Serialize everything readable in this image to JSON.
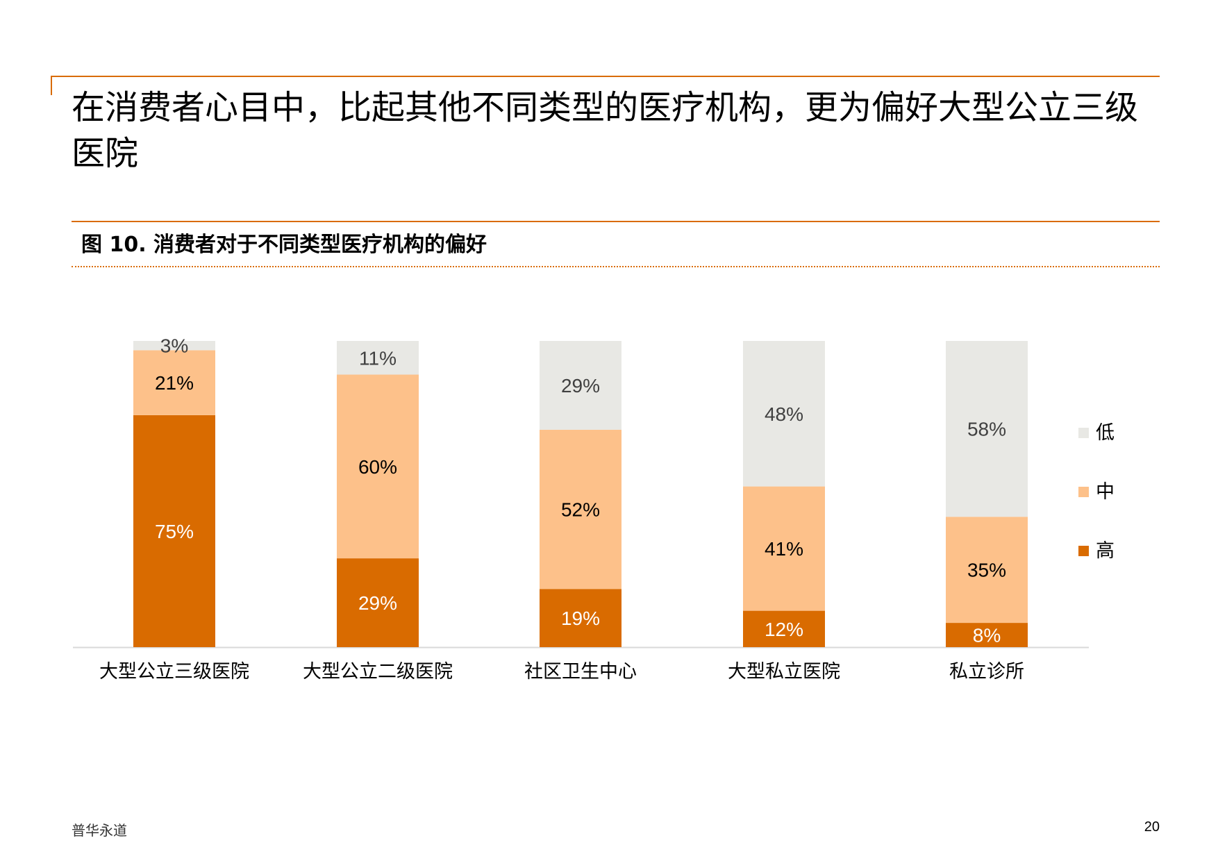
{
  "page": {
    "title": "在消费者心目中，比起其他不同类型的医疗机构，更为偏好大型公立三级医院",
    "figure_title": "图 10. 消费者对于不同类型医疗机构的偏好",
    "footer_brand": "普华永道",
    "page_number": "20"
  },
  "colors": {
    "high": "#d96b00",
    "medium": "#fdc18a",
    "low": "#e8e8e4",
    "accent_rule": "#d96b00"
  },
  "chart_data": {
    "type": "bar",
    "stacked": true,
    "percent": true,
    "title": "图 10. 消费者对于不同类型医疗机构的偏好",
    "xlabel": "",
    "ylabel": "",
    "ylim": [
      0,
      100
    ],
    "grid": false,
    "legend_position": "right",
    "categories": [
      "大型公立三级医院",
      "大型公立二级医院",
      "社区卫生中心",
      "大型私立医院",
      "私立诊所"
    ],
    "series": [
      {
        "name": "高",
        "values": [
          75,
          29,
          19,
          12,
          8
        ],
        "labels": [
          "75%",
          "29%",
          "19%",
          "12%",
          "8%"
        ]
      },
      {
        "name": "中",
        "values": [
          21,
          60,
          52,
          41,
          35
        ],
        "labels": [
          "21%",
          "60%",
          "52%",
          "41%",
          "35%"
        ]
      },
      {
        "name": "低",
        "values": [
          3,
          11,
          29,
          48,
          58
        ],
        "labels": [
          "3%",
          "11%",
          "29%",
          "48%",
          "58%"
        ]
      }
    ],
    "legend_order": [
      "低",
      "中",
      "高"
    ]
  }
}
